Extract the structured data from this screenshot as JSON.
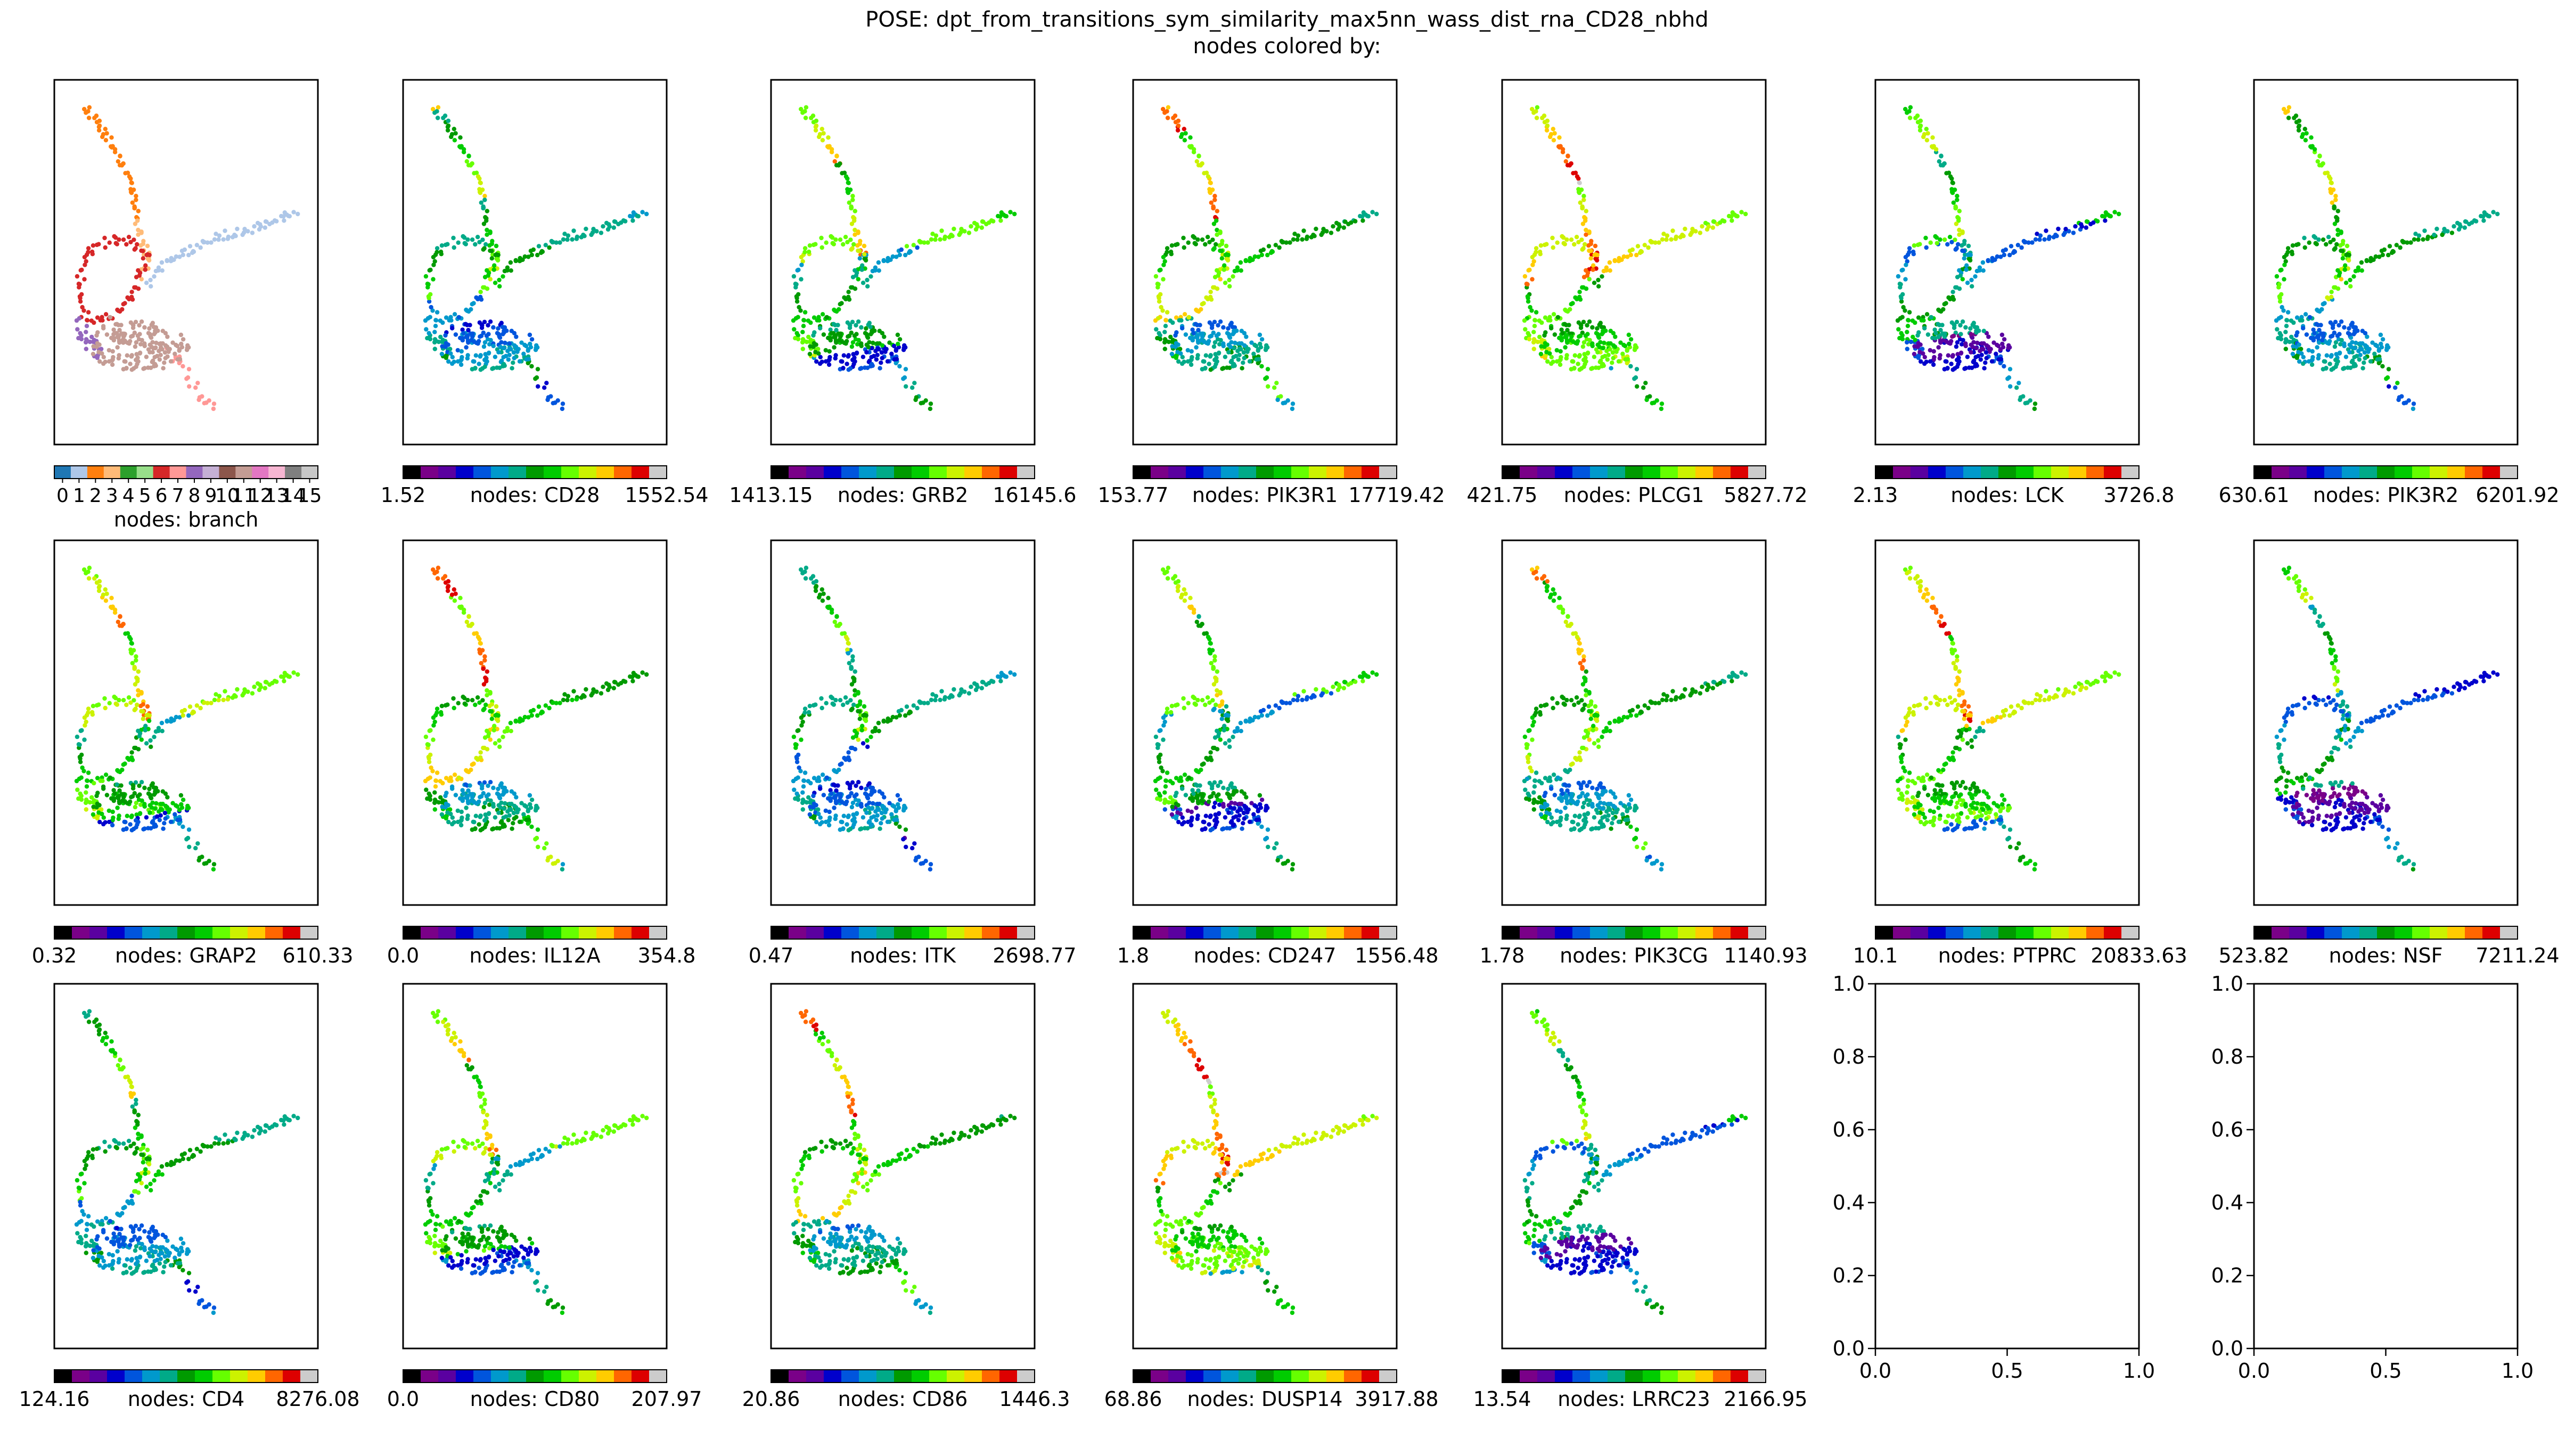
{
  "figure": {
    "title": "POSE: dpt_from_transitions_sym_similarity_max5nn_wass_dist_rna_CD28_nbhd",
    "subtitle": "nodes colored by:"
  },
  "colormaps": {
    "nipy_spectral": [
      "#000000",
      "#7a0088",
      "#5a00a0",
      "#0000cc",
      "#0055dd",
      "#0099cc",
      "#00aa88",
      "#009a00",
      "#00cc00",
      "#66ff00",
      "#ccf200",
      "#ffcc00",
      "#ff6600",
      "#dd0000",
      "#cccccc"
    ],
    "tab20": [
      "#1f77b4",
      "#aec7e8",
      "#ff7f0e",
      "#ffbb78",
      "#2ca02c",
      "#98df8a",
      "#d62728",
      "#ff9896",
      "#9467bd",
      "#c5b0d5",
      "#8c564b",
      "#c49c94",
      "#e377c2",
      "#f7b6d2",
      "#7f7f7f",
      "#c7c7c7"
    ]
  },
  "chart_data": [
    {
      "type": "scatter",
      "panel": "branch",
      "colorbar_label": "nodes: branch",
      "colorbar_ticks": [
        "0",
        "1",
        "2",
        "3",
        "4",
        "5",
        "6",
        "7",
        "8",
        "9",
        "10",
        "11",
        "12",
        "13",
        "14",
        "15"
      ],
      "colormap": "tab20",
      "categorical": true
    },
    {
      "type": "scatter",
      "panel": "CD28",
      "colorbar_label": "nodes: CD28",
      "cmin": "1.52",
      "cmax": "1552.54",
      "colormap": "nipy_spectral",
      "gene_index": 1
    },
    {
      "type": "scatter",
      "panel": "GRB2",
      "colorbar_label": "nodes: GRB2",
      "cmin": "1413.15",
      "cmax": "16145.6",
      "colormap": "nipy_spectral",
      "gene_index": 2
    },
    {
      "type": "scatter",
      "panel": "PIK3R1",
      "colorbar_label": "nodes: PIK3R1",
      "cmin": "153.77",
      "cmax": "17719.42",
      "colormap": "nipy_spectral",
      "gene_index": 3
    },
    {
      "type": "scatter",
      "panel": "PLCG1",
      "colorbar_label": "nodes: PLCG1",
      "cmin": "421.75",
      "cmax": "5827.72",
      "colormap": "nipy_spectral",
      "gene_index": 4
    },
    {
      "type": "scatter",
      "panel": "LCK",
      "colorbar_label": "nodes: LCK",
      "cmin": "2.13",
      "cmax": "3726.8",
      "colormap": "nipy_spectral",
      "gene_index": 5
    },
    {
      "type": "scatter",
      "panel": "PIK3R2",
      "colorbar_label": "nodes: PIK3R2",
      "cmin": "630.61",
      "cmax": "6201.92",
      "colormap": "nipy_spectral",
      "gene_index": 6
    },
    {
      "type": "scatter",
      "panel": "GRAP2",
      "colorbar_label": "nodes: GRAP2",
      "cmin": "0.32",
      "cmax": "610.33",
      "colormap": "nipy_spectral",
      "gene_index": 7
    },
    {
      "type": "scatter",
      "panel": "IL12A",
      "colorbar_label": "nodes: IL12A",
      "cmin": "0.0",
      "cmax": "354.8",
      "colormap": "nipy_spectral",
      "gene_index": 8
    },
    {
      "type": "scatter",
      "panel": "ITK",
      "colorbar_label": "nodes: ITK",
      "cmin": "0.47",
      "cmax": "2698.77",
      "colormap": "nipy_spectral",
      "gene_index": 9
    },
    {
      "type": "scatter",
      "panel": "CD247",
      "colorbar_label": "nodes: CD247",
      "cmin": "1.8",
      "cmax": "1556.48",
      "colormap": "nipy_spectral",
      "gene_index": 10
    },
    {
      "type": "scatter",
      "panel": "PIK3CG",
      "colorbar_label": "nodes: PIK3CG",
      "cmin": "1.78",
      "cmax": "1140.93",
      "colormap": "nipy_spectral",
      "gene_index": 11
    },
    {
      "type": "scatter",
      "panel": "PTPRC",
      "colorbar_label": "nodes: PTPRC",
      "cmin": "10.1",
      "cmax": "20833.63",
      "colormap": "nipy_spectral",
      "gene_index": 12
    },
    {
      "type": "scatter",
      "panel": "NSF",
      "colorbar_label": "nodes: NSF",
      "cmin": "523.82",
      "cmax": "7211.24",
      "colormap": "nipy_spectral",
      "gene_index": 13
    },
    {
      "type": "scatter",
      "panel": "CD4",
      "colorbar_label": "nodes: CD4",
      "cmin": "124.16",
      "cmax": "8276.08",
      "colormap": "nipy_spectral",
      "gene_index": 14
    },
    {
      "type": "scatter",
      "panel": "CD80",
      "colorbar_label": "nodes: CD80",
      "cmin": "0.0",
      "cmax": "207.97",
      "colormap": "nipy_spectral",
      "gene_index": 15
    },
    {
      "type": "scatter",
      "panel": "CD86",
      "colorbar_label": "nodes: CD86",
      "cmin": "20.86",
      "cmax": "1446.3",
      "colormap": "nipy_spectral",
      "gene_index": 16
    },
    {
      "type": "scatter",
      "panel": "DUSP14",
      "colorbar_label": "nodes: DUSP14",
      "cmin": "68.86",
      "cmax": "3917.88",
      "colormap": "nipy_spectral",
      "gene_index": 17
    },
    {
      "type": "scatter",
      "panel": "LRRC23",
      "colorbar_label": "nodes: LRRC23",
      "cmin": "13.54",
      "cmax": "2166.95",
      "colormap": "nipy_spectral",
      "gene_index": 18
    },
    {
      "type": "empty",
      "panel": "empty-1",
      "xlim": [
        0,
        1
      ],
      "ylim": [
        0,
        1
      ],
      "xticks": [
        "0.0",
        "0.5",
        "1.0"
      ],
      "yticks": [
        "0.0",
        "0.2",
        "0.4",
        "0.6",
        "0.8",
        "1.0"
      ]
    },
    {
      "type": "empty",
      "panel": "empty-2",
      "xlim": [
        0,
        1
      ],
      "ylim": [
        0,
        1
      ],
      "xticks": [
        "0.0",
        "0.5",
        "1.0"
      ],
      "yticks": [
        "0.0",
        "0.2",
        "0.4",
        "0.6",
        "0.8",
        "1.0"
      ]
    }
  ]
}
